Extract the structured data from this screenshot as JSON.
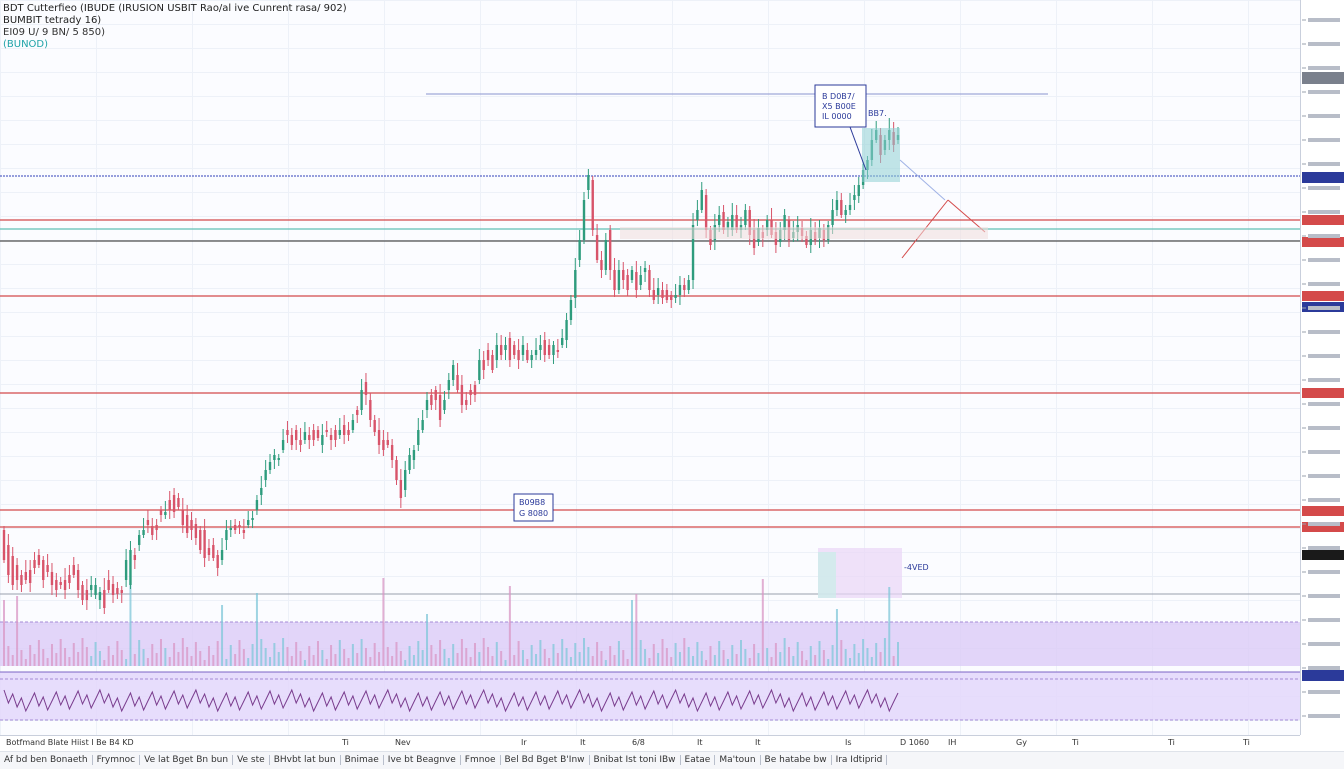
{
  "header": {
    "line1": "BDT Cutterfieo (IBUDE (IRUSION USBIT Rao/al ive Cunrent rasa/ 902)",
    "line2": "BUMBIT tetrady 16)",
    "line3": "EI09 U/ 9 BN/ 5 850)",
    "line4": "(BUNOD)"
  },
  "annotations": {
    "top_box": [
      "B D0B7/",
      "X5 B00E",
      "IL 0000"
    ],
    "top_box_small": "BB7.",
    "mid_box": [
      "B09B8",
      "G 8080"
    ],
    "volume_label": "-4VED"
  },
  "time_axis": {
    "left_label": "Botfmand Blate Hiist I Be B4 KD",
    "ticks": [
      {
        "x": 342,
        "label": "Ti"
      },
      {
        "x": 395,
        "label": "Nev"
      },
      {
        "x": 521,
        "label": "Ir"
      },
      {
        "x": 580,
        "label": "It"
      },
      {
        "x": 632,
        "label": "6/8"
      },
      {
        "x": 697,
        "label": "It"
      },
      {
        "x": 755,
        "label": "It"
      },
      {
        "x": 845,
        "label": "Is"
      },
      {
        "x": 900,
        "label": "D 1060"
      },
      {
        "x": 948,
        "label": "IH"
      },
      {
        "x": 1016,
        "label": "Gy"
      },
      {
        "x": 1072,
        "label": "Ti"
      },
      {
        "x": 1168,
        "label": "Ti"
      },
      {
        "x": 1243,
        "label": "Ti"
      }
    ]
  },
  "bottom_bar": [
    "Af bd ben Bonaeth",
    "Frymnoc",
    "Ve lat Bget Bn bun",
    "Ve ste",
    "BHvbt lat bun",
    "Bnimae",
    "Ive bt Beagnve",
    "Fmnoe",
    "Bel Bd Bget B'Inw",
    "Bnibat Ist toni IBw",
    "Eatae",
    "Ma'toun",
    "Be hatabe bw",
    "Ira Idtiprid"
  ],
  "colors": {
    "up": "#2e9c7d",
    "down": "#d8546a",
    "blue_line": "#3140b8",
    "red_line": "#d44a4a",
    "teal_line": "#5fbfb4",
    "volume_fill": "#d9c8f7",
    "indicator_fill": "#e3d7fb"
  },
  "chart_data": {
    "type": "candlestick",
    "series": [
      {
        "name": "",
        "points": [
          [
            530,
            560
          ],
          [
            545,
            575
          ],
          [
            556,
            585
          ],
          [
            565,
            580
          ],
          [
            575,
            585
          ],
          [
            572,
            580
          ],
          [
            570,
            583
          ],
          [
            560,
            568
          ],
          [
            555,
            565
          ],
          [
            560,
            580
          ],
          [
            565,
            572
          ],
          [
            572,
            585
          ],
          [
            580,
            590
          ],
          [
            582,
            585
          ],
          [
            580,
            590
          ],
          [
            575,
            583
          ],
          [
            565,
            575
          ],
          [
            570,
            590
          ],
          [
            585,
            600
          ],
          [
            590,
            600
          ],
          [
            590,
            585
          ],
          [
            595,
            585
          ],
          [
            600,
            592
          ],
          [
            590,
            608
          ],
          [
            580,
            590
          ],
          [
            584,
            595
          ],
          [
            588,
            594
          ],
          [
            590,
            593
          ],
          [
            580,
            560
          ],
          [
            585,
            550
          ],
          [
            555,
            560
          ],
          [
            545,
            535
          ],
          [
            535,
            530
          ],
          [
            520,
            525
          ],
          [
            526,
            535
          ],
          [
            525,
            530
          ],
          [
            510,
            515
          ],
          [
            515,
            512
          ],
          [
            500,
            510
          ],
          [
            495,
            512
          ],
          [
            498,
            507
          ],
          [
            510,
            525
          ],
          [
            515,
            533
          ],
          [
            520,
            530
          ],
          [
            524,
            538
          ],
          [
            530,
            550
          ],
          [
            530,
            558
          ],
          [
            548,
            555
          ],
          [
            545,
            558
          ],
          [
            555,
            568
          ],
          [
            560,
            550
          ],
          [
            540,
            530
          ],
          [
            530,
            528
          ],
          [
            525,
            530
          ],
          [
            525,
            525
          ],
          [
            530,
            533
          ],
          [
            525,
            520
          ],
          [
            520,
            518
          ],
          [
            510,
            500
          ],
          [
            495,
            488
          ],
          [
            480,
            470
          ],
          [
            470,
            462
          ],
          [
            460,
            455
          ],
          [
            460,
            458
          ],
          [
            450,
            440
          ],
          [
            430,
            435
          ],
          [
            435,
            445
          ],
          [
            430,
            440
          ],
          [
            440,
            445
          ],
          [
            440,
            432
          ],
          [
            435,
            440
          ],
          [
            430,
            440
          ],
          [
            430,
            438
          ],
          [
            445,
            435
          ],
          [
            430,
            432
          ],
          [
            435,
            440
          ],
          [
            430,
            440
          ],
          [
            435,
            430
          ],
          [
            425,
            435
          ],
          [
            430,
            435
          ],
          [
            430,
            420
          ],
          [
            410,
            415
          ],
          [
            410,
            390
          ],
          [
            382,
            395
          ],
          [
            400,
            420
          ],
          [
            420,
            432
          ],
          [
            430,
            445
          ],
          [
            440,
            450
          ],
          [
            440,
            445
          ],
          [
            445,
            460
          ],
          [
            460,
            480
          ],
          [
            480,
            498
          ],
          [
            490,
            470
          ],
          [
            470,
            455
          ],
          [
            460,
            450
          ],
          [
            445,
            430
          ],
          [
            430,
            420
          ],
          [
            410,
            400
          ],
          [
            395,
            405
          ],
          [
            390,
            400
          ],
          [
            395,
            420
          ],
          [
            410,
            400
          ],
          [
            390,
            380
          ],
          [
            380,
            365
          ],
          [
            375,
            390
          ],
          [
            385,
            405
          ],
          [
            400,
            405
          ],
          [
            390,
            395
          ],
          [
            385,
            395
          ],
          [
            380,
            360
          ],
          [
            360,
            370
          ],
          [
            350,
            360
          ],
          [
            355,
            370
          ],
          [
            360,
            345
          ],
          [
            345,
            355
          ],
          [
            350,
            345
          ],
          [
            338,
            360
          ],
          [
            345,
            355
          ],
          [
            350,
            360
          ],
          [
            355,
            345
          ],
          [
            350,
            360
          ],
          [
            360,
            355
          ],
          [
            355,
            350
          ],
          [
            350,
            345
          ],
          [
            340,
            355
          ],
          [
            345,
            355
          ],
          [
            355,
            345
          ],
          [
            350,
            352
          ],
          [
            345,
            338
          ],
          [
            340,
            320
          ],
          [
            320,
            300
          ],
          [
            298,
            270
          ],
          [
            260,
            240
          ],
          [
            240,
            200
          ],
          [
            190,
            175
          ],
          [
            180,
            230
          ],
          [
            235,
            260
          ],
          [
            260,
            270
          ],
          [
            270,
            240
          ],
          [
            230,
            270
          ],
          [
            270,
            290
          ],
          [
            290,
            270
          ],
          [
            270,
            280
          ],
          [
            275,
            290
          ],
          [
            280,
            270
          ],
          [
            272,
            290
          ],
          [
            285,
            275
          ],
          [
            272,
            268
          ],
          [
            270,
            290
          ],
          [
            290,
            300
          ],
          [
            295,
            288
          ],
          [
            290,
            298
          ],
          [
            290,
            300
          ],
          [
            295,
            300
          ],
          [
            298,
            295
          ],
          [
            295,
            285
          ],
          [
            285,
            290
          ],
          [
            290,
            280
          ],
          [
            280,
            225
          ],
          [
            220,
            210
          ],
          [
            210,
            190
          ],
          [
            195,
            230
          ],
          [
            230,
            245
          ],
          [
            240,
            225
          ],
          [
            225,
            215
          ],
          [
            212,
            230
          ],
          [
            228,
            222
          ],
          [
            230,
            215
          ],
          [
            215,
            230
          ],
          [
            230,
            225
          ],
          [
            225,
            210
          ],
          [
            210,
            235
          ],
          [
            230,
            248
          ],
          [
            242,
            228
          ],
          [
            232,
            238
          ],
          [
            230,
            220
          ],
          [
            220,
            235
          ],
          [
            232,
            245
          ],
          [
            242,
            230
          ],
          [
            230,
            215
          ],
          [
            220,
            240
          ],
          [
            238,
            232
          ],
          [
            232,
            225
          ],
          [
            228,
            236
          ],
          [
            236,
            245
          ],
          [
            245,
            230
          ],
          [
            232,
            240
          ],
          [
            238,
            228
          ],
          [
            230,
            240
          ],
          [
            240,
            225
          ],
          [
            225,
            210
          ],
          [
            210,
            200
          ],
          [
            200,
            215
          ],
          [
            215,
            210
          ],
          [
            210,
            205
          ],
          [
            200,
            195
          ],
          [
            196,
            185
          ],
          [
            185,
            170
          ],
          [
            170,
            160
          ],
          [
            160,
            140
          ],
          [
            140,
            130
          ],
          [
            135,
            155
          ],
          [
            150,
            140
          ],
          [
            140,
            130
          ],
          [
            132,
            145
          ],
          [
            140,
            135
          ]
        ]
      }
    ]
  }
}
